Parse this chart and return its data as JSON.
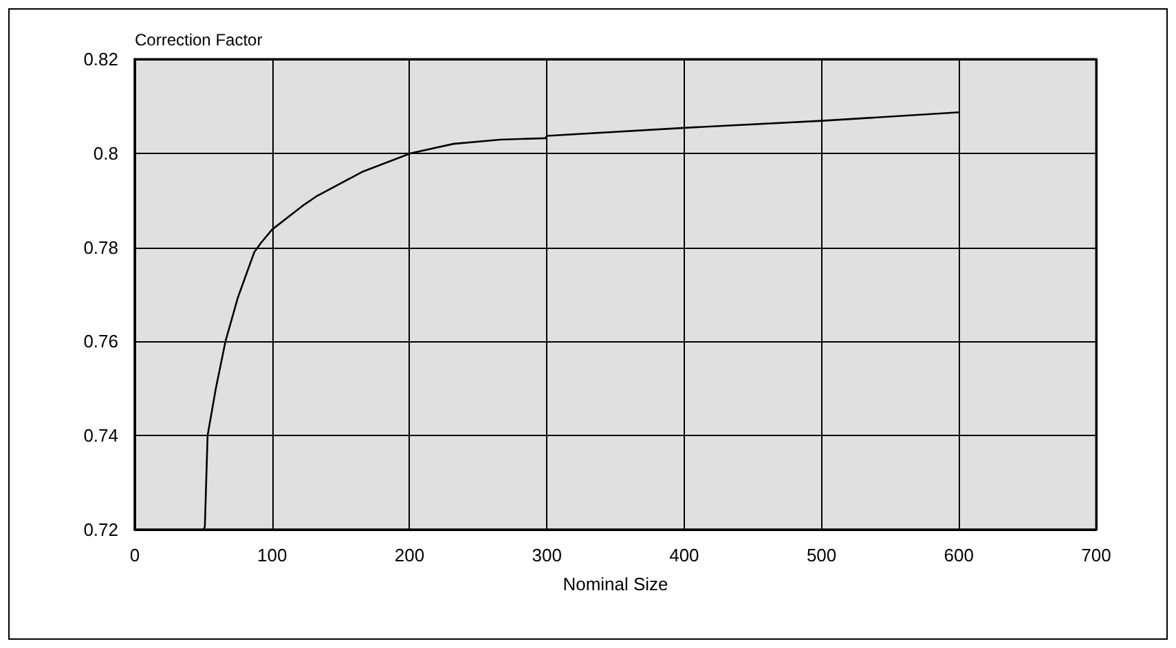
{
  "chart_data": {
    "type": "line",
    "xlabel": "Nominal Size",
    "ylabel": "Correction Factor",
    "series": [
      {
        "color": "#000000",
        "x": [
          50,
          51,
          53,
          59,
          66,
          75,
          87,
          92,
          100,
          122,
          132,
          166,
          201,
          232,
          266,
          299,
          300,
          400,
          500,
          600
        ],
        "values": [
          0.72,
          0.7206,
          0.74,
          0.75,
          0.76,
          0.7693,
          0.779,
          0.781,
          0.7838,
          0.7888,
          0.7908,
          0.7961,
          0.8,
          0.802,
          0.8029,
          0.8032,
          0.8037,
          0.8054,
          0.8069,
          0.8087
        ]
      }
    ],
    "xlim": [
      0,
      700
    ],
    "xticks": [
      0,
      100,
      200,
      300,
      400,
      500,
      600,
      700
    ],
    "ylim": [
      0.72,
      0.82
    ],
    "yticks": [
      0.72,
      0.74,
      0.76,
      0.78,
      0.8,
      0.82
    ],
    "grid": true,
    "marker": "none",
    "line_style": "solid"
  }
}
